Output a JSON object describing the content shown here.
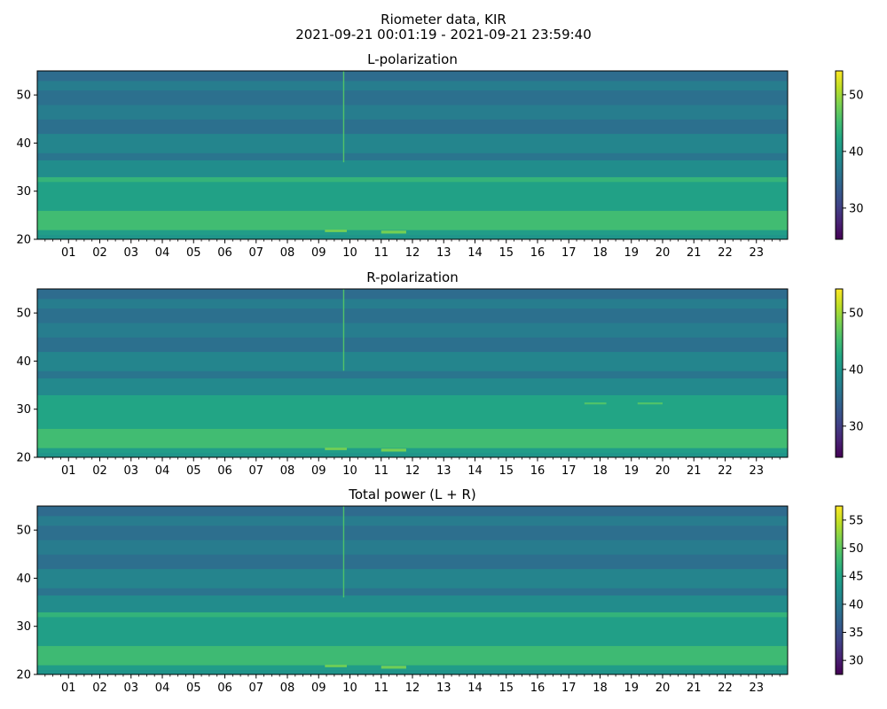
{
  "figure": {
    "title_line1": "Riometer data, KIR",
    "title_line2": "2021-09-21 00:01:19 - 2021-09-21 23:59:40"
  },
  "chart_data": [
    {
      "type": "heatmap",
      "title": "L-polarization",
      "xlabel": "",
      "ylabel": "",
      "x_tick_labels": [
        "01",
        "02",
        "03",
        "04",
        "05",
        "06",
        "07",
        "08",
        "09",
        "10",
        "11",
        "12",
        "13",
        "14",
        "15",
        "16",
        "17",
        "18",
        "19",
        "20",
        "21",
        "22",
        "23"
      ],
      "x_range_hours": [
        0.0,
        24.0
      ],
      "ylim": [
        20,
        55
      ],
      "y_ticks": [
        20,
        30,
        40,
        50
      ],
      "colorbar": {
        "colormap": "viridis",
        "range": [
          24.5,
          54.2
        ],
        "ticks": [
          30,
          40,
          50
        ]
      },
      "value_bands": [
        {
          "y_range": [
            20,
            21
          ],
          "value": 40
        },
        {
          "y_range": [
            21,
            22
          ],
          "value": 41
        },
        {
          "y_range": [
            22,
            26
          ],
          "value": 45
        },
        {
          "y_range": [
            26,
            32
          ],
          "value": 41.5
        },
        {
          "y_range": [
            32,
            33
          ],
          "value": 44
        },
        {
          "y_range": [
            33,
            36.5
          ],
          "value": 39
        },
        {
          "y_range": [
            36.5,
            38
          ],
          "value": 36
        },
        {
          "y_range": [
            38,
            42
          ],
          "value": 38
        },
        {
          "y_range": [
            42,
            45
          ],
          "value": 35.5
        },
        {
          "y_range": [
            45,
            48
          ],
          "value": 37
        },
        {
          "y_range": [
            48,
            51
          ],
          "value": 35.5
        },
        {
          "y_range": [
            51,
            53
          ],
          "value": 37
        },
        {
          "y_range": [
            53,
            55
          ],
          "value": 35
        }
      ],
      "features": [
        {
          "kind": "spike",
          "x_hour": 9.8,
          "y_range": [
            36,
            55
          ],
          "value": 46
        },
        {
          "kind": "patch",
          "x_hour_range": [
            9.2,
            9.9
          ],
          "y_range": [
            21.5,
            22
          ],
          "value": 48
        },
        {
          "kind": "patch",
          "x_hour_range": [
            11.0,
            11.8
          ],
          "y_range": [
            21.2,
            21.8
          ],
          "value": 48
        }
      ]
    },
    {
      "type": "heatmap",
      "title": "R-polarization",
      "xlabel": "",
      "ylabel": "",
      "x_tick_labels": [
        "01",
        "02",
        "03",
        "04",
        "05",
        "06",
        "07",
        "08",
        "09",
        "10",
        "11",
        "12",
        "13",
        "14",
        "15",
        "16",
        "17",
        "18",
        "19",
        "20",
        "21",
        "22",
        "23"
      ],
      "x_range_hours": [
        0.0,
        24.0
      ],
      "ylim": [
        20,
        55
      ],
      "y_ticks": [
        20,
        30,
        40,
        50
      ],
      "colorbar": {
        "colormap": "viridis",
        "range": [
          24.5,
          54.2
        ],
        "ticks": [
          30,
          40,
          50
        ]
      },
      "value_bands": [
        {
          "y_range": [
            20,
            21
          ],
          "value": 40
        },
        {
          "y_range": [
            21,
            22
          ],
          "value": 41
        },
        {
          "y_range": [
            22,
            26
          ],
          "value": 45
        },
        {
          "y_range": [
            26,
            33
          ],
          "value": 42
        },
        {
          "y_range": [
            33,
            36.5
          ],
          "value": 38.5
        },
        {
          "y_range": [
            36.5,
            38
          ],
          "value": 36
        },
        {
          "y_range": [
            38,
            42
          ],
          "value": 38
        },
        {
          "y_range": [
            42,
            45
          ],
          "value": 35.5
        },
        {
          "y_range": [
            45,
            48
          ],
          "value": 37
        },
        {
          "y_range": [
            48,
            51
          ],
          "value": 35.5
        },
        {
          "y_range": [
            51,
            53
          ],
          "value": 37
        },
        {
          "y_range": [
            53,
            55
          ],
          "value": 35
        }
      ],
      "features": [
        {
          "kind": "spike",
          "x_hour": 9.8,
          "y_range": [
            38,
            55
          ],
          "value": 46
        },
        {
          "kind": "patch",
          "x_hour_range": [
            9.2,
            9.9
          ],
          "y_range": [
            21.5,
            22
          ],
          "value": 48
        },
        {
          "kind": "patch",
          "x_hour_range": [
            11.0,
            11.8
          ],
          "y_range": [
            21.2,
            21.8
          ],
          "value": 48
        },
        {
          "kind": "patch",
          "x_hour_range": [
            17.5,
            18.2
          ],
          "y_range": [
            31,
            31.4
          ],
          "value": 46
        },
        {
          "kind": "patch",
          "x_hour_range": [
            19.2,
            20.0
          ],
          "y_range": [
            31,
            31.4
          ],
          "value": 46
        }
      ]
    },
    {
      "type": "heatmap",
      "title": "Total power (L + R)",
      "xlabel": "",
      "ylabel": "",
      "x_tick_labels": [
        "01",
        "02",
        "03",
        "04",
        "05",
        "06",
        "07",
        "08",
        "09",
        "10",
        "11",
        "12",
        "13",
        "14",
        "15",
        "16",
        "17",
        "18",
        "19",
        "20",
        "21",
        "22",
        "23"
      ],
      "x_range_hours": [
        0.0,
        24.0
      ],
      "ylim": [
        20,
        55
      ],
      "y_ticks": [
        20,
        30,
        40,
        50
      ],
      "colorbar": {
        "colormap": "viridis",
        "range": [
          27.5,
          57.5
        ],
        "ticks": [
          30,
          35,
          40,
          45,
          50,
          55
        ]
      },
      "value_bands": [
        {
          "y_range": [
            20,
            21
          ],
          "value": 43
        },
        {
          "y_range": [
            21,
            22
          ],
          "value": 44
        },
        {
          "y_range": [
            22,
            26
          ],
          "value": 48
        },
        {
          "y_range": [
            26,
            32
          ],
          "value": 44.5
        },
        {
          "y_range": [
            32,
            33
          ],
          "value": 47
        },
        {
          "y_range": [
            33,
            36.5
          ],
          "value": 42
        },
        {
          "y_range": [
            36.5,
            38
          ],
          "value": 39
        },
        {
          "y_range": [
            38,
            42
          ],
          "value": 41
        },
        {
          "y_range": [
            42,
            45
          ],
          "value": 38.5
        },
        {
          "y_range": [
            45,
            48
          ],
          "value": 40
        },
        {
          "y_range": [
            48,
            51
          ],
          "value": 38.5
        },
        {
          "y_range": [
            51,
            53
          ],
          "value": 40
        },
        {
          "y_range": [
            53,
            55
          ],
          "value": 38
        }
      ],
      "features": [
        {
          "kind": "spike",
          "x_hour": 9.8,
          "y_range": [
            36,
            55
          ],
          "value": 49
        },
        {
          "kind": "patch",
          "x_hour_range": [
            9.2,
            9.9
          ],
          "y_range": [
            21.5,
            22
          ],
          "value": 51
        },
        {
          "kind": "patch",
          "x_hour_range": [
            11.0,
            11.8
          ],
          "y_range": [
            21.2,
            21.8
          ],
          "value": 51
        }
      ]
    }
  ]
}
